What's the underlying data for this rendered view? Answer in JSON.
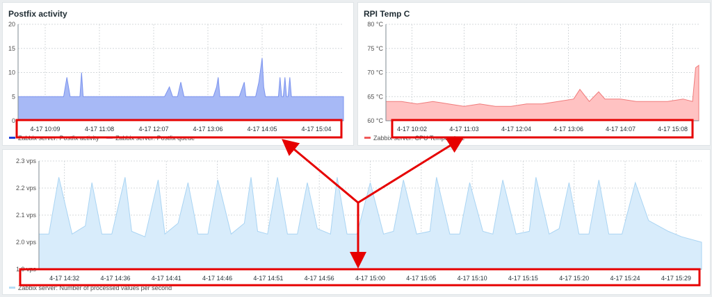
{
  "panels": {
    "postfix": {
      "title": "Postfix activity",
      "legend": [
        {
          "label": "Zabbix server: Postfix activity",
          "color": "#1f3fd6"
        },
        {
          "label": "Zabbix server: Postfix queue",
          "color": "#9fb2f5"
        }
      ]
    },
    "rpi": {
      "title": "RPI Temp C",
      "legend": [
        {
          "label": "Zabbix server: CPU Temperature",
          "color": "#f05a5a"
        }
      ]
    },
    "vps": {
      "legend": [
        {
          "label": "Zabbix server: Number of processed values per second",
          "color": "#b5dcf5"
        }
      ]
    }
  },
  "colors": {
    "postfix_fill": "#a7b9f6",
    "postfix_line": "#7b93ee",
    "rpi_fill": "#ffc2c2",
    "rpi_line": "#f07b7b",
    "vps_fill": "#d8ecfb",
    "vps_line": "#a9d4f3",
    "highlight": "#e60000"
  },
  "chart_data": [
    {
      "type": "area",
      "title": "Postfix activity",
      "ylim": [
        0,
        20
      ],
      "yticks": [
        "20",
        "15",
        "10",
        "5",
        "0"
      ],
      "xticks": [
        "4-17 10:09",
        "4-17 11:08",
        "4-17 12:07",
        "4-17 13:06",
        "4-17 14:05",
        "4-17 15:04"
      ],
      "series": [
        {
          "name": "Zabbix server: Postfix queue",
          "x": [
            0,
            0.13,
            0.14,
            0.15,
            0.16,
            0.17,
            0.19,
            0.195,
            0.2,
            0.205,
            0.21,
            0.3,
            0.45,
            0.465,
            0.475,
            0.48,
            0.49,
            0.5,
            0.51,
            0.515,
            0.52,
            0.6,
            0.61,
            0.615,
            0.62,
            0.63,
            0.68,
            0.69,
            0.695,
            0.7,
            0.73,
            0.74,
            0.75,
            0.755,
            0.76,
            0.77,
            0.8,
            0.805,
            0.81,
            0.815,
            0.82,
            0.825,
            0.83,
            0.835,
            0.84,
            0.845,
            0.85,
            0.9,
            0.99,
            0.995,
            1.0
          ],
          "values": [
            5,
            5,
            5,
            9,
            5,
            5,
            5,
            10,
            5,
            5,
            5,
            5,
            5,
            7,
            5,
            5,
            5,
            8,
            5,
            5,
            5,
            5,
            7,
            9,
            5,
            5,
            5,
            7,
            8,
            5,
            5,
            8,
            13,
            7,
            5,
            5,
            5,
            9,
            5,
            5,
            9,
            5,
            5,
            9,
            5,
            5,
            5,
            5,
            5,
            5,
            5
          ]
        }
      ]
    },
    {
      "type": "area",
      "title": "RPI Temp C",
      "ylim": [
        60,
        80
      ],
      "yticks": [
        "80 °C",
        "75 °C",
        "70 °C",
        "65 °C",
        "60 °C"
      ],
      "xticks": [
        "4-17 10:02",
        "4-17 11:03",
        "4-17 12:04",
        "4-17 13:06",
        "4-17 14:07",
        "4-17 15:08"
      ],
      "series": [
        {
          "name": "Zabbix server: CPU Temperature",
          "x": [
            0,
            0.05,
            0.1,
            0.15,
            0.2,
            0.25,
            0.3,
            0.35,
            0.4,
            0.45,
            0.5,
            0.55,
            0.6,
            0.62,
            0.65,
            0.68,
            0.7,
            0.75,
            0.8,
            0.85,
            0.9,
            0.95,
            0.98,
            0.99,
            1.0
          ],
          "values": [
            64,
            64,
            63.5,
            64,
            63.5,
            63,
            63.5,
            63,
            63,
            63.5,
            63.5,
            64,
            64.5,
            66.5,
            64,
            66,
            64.5,
            64.5,
            64,
            64,
            64,
            64.5,
            64,
            71,
            71.5
          ]
        }
      ]
    },
    {
      "type": "area",
      "title": "",
      "ylim": [
        1.9,
        2.3
      ],
      "yticks": [
        "2.3 vps",
        "2.2 vps",
        "2.1 vps",
        "2.0 vps",
        "1.9 vps"
      ],
      "xticks": [
        "4-17 14:32",
        "4-17 14:36",
        "4-17 14:41",
        "4-17 14:46",
        "4-17 14:51",
        "4-17 14:56",
        "4-17 15:00",
        "4-17 15:05",
        "4-17 15:10",
        "4-17 15:15",
        "4-17 15:20",
        "4-17 15:24",
        "4-17 15:29"
      ],
      "series": [
        {
          "name": "Zabbix server: Number of processed values per second",
          "x": [
            0,
            0.015,
            0.03,
            0.05,
            0.07,
            0.08,
            0.095,
            0.11,
            0.13,
            0.14,
            0.16,
            0.18,
            0.19,
            0.21,
            0.225,
            0.24,
            0.255,
            0.27,
            0.29,
            0.31,
            0.32,
            0.33,
            0.345,
            0.36,
            0.375,
            0.39,
            0.405,
            0.42,
            0.44,
            0.45,
            0.465,
            0.48,
            0.5,
            0.52,
            0.535,
            0.55,
            0.57,
            0.59,
            0.6,
            0.62,
            0.635,
            0.65,
            0.67,
            0.685,
            0.7,
            0.72,
            0.74,
            0.75,
            0.77,
            0.785,
            0.8,
            0.815,
            0.83,
            0.845,
            0.86,
            0.88,
            0.9,
            0.92,
            0.95,
            0.97,
            1.0
          ],
          "values": [
            2.03,
            2.03,
            2.24,
            2.03,
            2.06,
            2.22,
            2.03,
            2.03,
            2.24,
            2.04,
            2.02,
            2.23,
            2.03,
            2.07,
            2.22,
            2.03,
            2.03,
            2.23,
            2.03,
            2.07,
            2.24,
            2.04,
            2.03,
            2.24,
            2.03,
            2.03,
            2.22,
            2.05,
            2.03,
            2.24,
            2.03,
            2.03,
            2.22,
            2.03,
            2.04,
            2.23,
            2.03,
            2.04,
            2.24,
            2.03,
            2.03,
            2.22,
            2.04,
            2.03,
            2.23,
            2.03,
            2.04,
            2.24,
            2.03,
            2.05,
            2.22,
            2.03,
            2.03,
            2.23,
            2.03,
            2.03,
            2.22,
            2.08,
            2.04,
            2.02,
            2.0
          ]
        }
      ]
    }
  ]
}
